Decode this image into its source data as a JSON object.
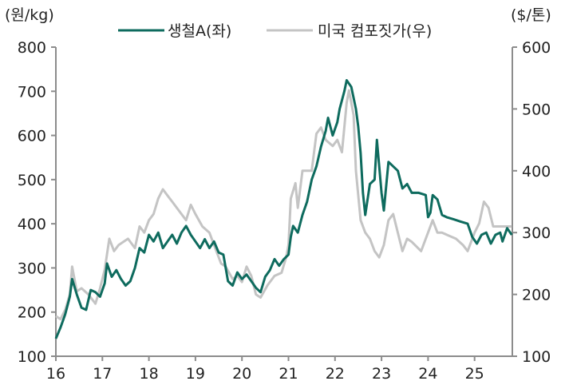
{
  "chart_data": {
    "type": "line",
    "title": "",
    "left_axis": {
      "unit_label": "(원/kg)",
      "ticks": [
        100,
        200,
        300,
        400,
        500,
        600,
        700,
        800
      ],
      "ylim": [
        100,
        800
      ]
    },
    "right_axis": {
      "unit_label": "($/톤)",
      "ticks": [
        100,
        200,
        300,
        400,
        500,
        600
      ],
      "ylim": [
        100,
        600
      ]
    },
    "x_axis": {
      "ticks": [
        "16",
        "17",
        "18",
        "19",
        "20",
        "21",
        "22",
        "23",
        "24",
        "25"
      ],
      "xlim": [
        16,
        25.8
      ]
    },
    "grid": false,
    "legend_position": "top",
    "colors": {
      "series_a": "#0e6b5e",
      "series_b": "#c4c4c4",
      "axis": "#8c8c8c"
    },
    "series": [
      {
        "name": "생철A(좌)",
        "axis": "left",
        "points": [
          [
            16.0,
            140
          ],
          [
            16.1,
            165
          ],
          [
            16.2,
            195
          ],
          [
            16.3,
            235
          ],
          [
            16.35,
            275
          ],
          [
            16.45,
            240
          ],
          [
            16.55,
            210
          ],
          [
            16.65,
            205
          ],
          [
            16.75,
            250
          ],
          [
            16.85,
            245
          ],
          [
            16.95,
            235
          ],
          [
            17.05,
            265
          ],
          [
            17.1,
            310
          ],
          [
            17.2,
            280
          ],
          [
            17.3,
            295
          ],
          [
            17.4,
            275
          ],
          [
            17.5,
            260
          ],
          [
            17.6,
            270
          ],
          [
            17.7,
            300
          ],
          [
            17.8,
            345
          ],
          [
            17.9,
            335
          ],
          [
            18.0,
            375
          ],
          [
            18.1,
            360
          ],
          [
            18.2,
            380
          ],
          [
            18.3,
            345
          ],
          [
            18.4,
            360
          ],
          [
            18.5,
            375
          ],
          [
            18.6,
            355
          ],
          [
            18.7,
            380
          ],
          [
            18.8,
            395
          ],
          [
            18.9,
            375
          ],
          [
            19.0,
            360
          ],
          [
            19.1,
            345
          ],
          [
            19.2,
            365
          ],
          [
            19.3,
            345
          ],
          [
            19.4,
            360
          ],
          [
            19.5,
            335
          ],
          [
            19.6,
            330
          ],
          [
            19.7,
            270
          ],
          [
            19.8,
            260
          ],
          [
            19.9,
            290
          ],
          [
            20.0,
            275
          ],
          [
            20.1,
            285
          ],
          [
            20.2,
            270
          ],
          [
            20.3,
            255
          ],
          [
            20.4,
            245
          ],
          [
            20.5,
            280
          ],
          [
            20.6,
            295
          ],
          [
            20.7,
            320
          ],
          [
            20.8,
            305
          ],
          [
            20.9,
            320
          ],
          [
            21.0,
            330
          ],
          [
            21.05,
            370
          ],
          [
            21.1,
            395
          ],
          [
            21.2,
            380
          ],
          [
            21.3,
            420
          ],
          [
            21.4,
            450
          ],
          [
            21.5,
            500
          ],
          [
            21.6,
            530
          ],
          [
            21.7,
            575
          ],
          [
            21.8,
            610
          ],
          [
            21.85,
            640
          ],
          [
            21.95,
            600
          ],
          [
            22.05,
            630
          ],
          [
            22.1,
            660
          ],
          [
            22.2,
            700
          ],
          [
            22.25,
            725
          ],
          [
            22.35,
            710
          ],
          [
            22.45,
            660
          ],
          [
            22.5,
            620
          ],
          [
            22.55,
            560
          ],
          [
            22.6,
            470
          ],
          [
            22.65,
            420
          ],
          [
            22.75,
            490
          ],
          [
            22.85,
            500
          ],
          [
            22.9,
            590
          ],
          [
            23.0,
            470
          ],
          [
            23.05,
            430
          ],
          [
            23.15,
            540
          ],
          [
            23.25,
            530
          ],
          [
            23.35,
            520
          ],
          [
            23.45,
            480
          ],
          [
            23.55,
            490
          ],
          [
            23.65,
            470
          ],
          [
            23.8,
            470
          ],
          [
            23.95,
            465
          ],
          [
            24.0,
            415
          ],
          [
            24.05,
            425
          ],
          [
            24.1,
            465
          ],
          [
            24.2,
            455
          ],
          [
            24.3,
            420
          ],
          [
            24.4,
            415
          ],
          [
            24.55,
            410
          ],
          [
            24.7,
            405
          ],
          [
            24.85,
            400
          ],
          [
            24.95,
            370
          ],
          [
            25.05,
            355
          ],
          [
            25.15,
            375
          ],
          [
            25.25,
            380
          ],
          [
            25.35,
            355
          ],
          [
            25.45,
            375
          ],
          [
            25.55,
            380
          ],
          [
            25.6,
            360
          ],
          [
            25.7,
            390
          ],
          [
            25.8,
            375
          ]
        ]
      },
      {
        "name": "미국 컴포짓가(우)",
        "axis": "right",
        "points": [
          [
            16.0,
            165
          ],
          [
            16.1,
            160
          ],
          [
            16.2,
            175
          ],
          [
            16.3,
            200
          ],
          [
            16.35,
            245
          ],
          [
            16.45,
            205
          ],
          [
            16.55,
            210
          ],
          [
            16.7,
            200
          ],
          [
            16.85,
            185
          ],
          [
            16.95,
            210
          ],
          [
            17.05,
            240
          ],
          [
            17.15,
            290
          ],
          [
            17.25,
            270
          ],
          [
            17.35,
            280
          ],
          [
            17.55,
            290
          ],
          [
            17.7,
            275
          ],
          [
            17.8,
            310
          ],
          [
            17.9,
            300
          ],
          [
            18.0,
            320
          ],
          [
            18.1,
            330
          ],
          [
            18.2,
            355
          ],
          [
            18.3,
            370
          ],
          [
            18.4,
            360
          ],
          [
            18.5,
            350
          ],
          [
            18.65,
            335
          ],
          [
            18.8,
            320
          ],
          [
            18.9,
            345
          ],
          [
            19.0,
            330
          ],
          [
            19.15,
            310
          ],
          [
            19.3,
            300
          ],
          [
            19.45,
            270
          ],
          [
            19.55,
            250
          ],
          [
            19.65,
            245
          ],
          [
            19.8,
            225
          ],
          [
            19.9,
            230
          ],
          [
            20.0,
            220
          ],
          [
            20.1,
            245
          ],
          [
            20.2,
            230
          ],
          [
            20.3,
            200
          ],
          [
            20.4,
            195
          ],
          [
            20.55,
            215
          ],
          [
            20.7,
            230
          ],
          [
            20.85,
            235
          ],
          [
            20.95,
            260
          ],
          [
            21.0,
            280
          ],
          [
            21.05,
            355
          ],
          [
            21.15,
            380
          ],
          [
            21.2,
            340
          ],
          [
            21.3,
            400
          ],
          [
            21.4,
            400
          ],
          [
            21.5,
            400
          ],
          [
            21.6,
            460
          ],
          [
            21.7,
            470
          ],
          [
            21.8,
            450
          ],
          [
            21.95,
            440
          ],
          [
            22.05,
            450
          ],
          [
            22.15,
            430
          ],
          [
            22.25,
            510
          ],
          [
            22.3,
            530
          ],
          [
            22.4,
            490
          ],
          [
            22.45,
            400
          ],
          [
            22.55,
            320
          ],
          [
            22.65,
            300
          ],
          [
            22.75,
            290
          ],
          [
            22.85,
            270
          ],
          [
            22.95,
            260
          ],
          [
            23.05,
            280
          ],
          [
            23.15,
            320
          ],
          [
            23.25,
            330
          ],
          [
            23.35,
            300
          ],
          [
            23.45,
            270
          ],
          [
            23.55,
            290
          ],
          [
            23.65,
            285
          ],
          [
            23.85,
            270
          ],
          [
            24.0,
            300
          ],
          [
            24.1,
            320
          ],
          [
            24.2,
            300
          ],
          [
            24.3,
            300
          ],
          [
            24.45,
            295
          ],
          [
            24.6,
            290
          ],
          [
            24.75,
            280
          ],
          [
            24.85,
            270
          ],
          [
            25.0,
            300
          ],
          [
            25.1,
            315
          ],
          [
            25.2,
            350
          ],
          [
            25.3,
            340
          ],
          [
            25.4,
            310
          ],
          [
            25.5,
            310
          ],
          [
            25.8,
            310
          ]
        ]
      }
    ]
  },
  "legend": {
    "items": [
      {
        "label": "생철A(좌)",
        "color": "#0e6b5e"
      },
      {
        "label": "미국 컴포짓가(우)",
        "color": "#c4c4c4"
      }
    ]
  },
  "axes": {
    "left_unit": "(원/kg)",
    "right_unit": "($/톤)",
    "left_ticks": [
      "800",
      "700",
      "600",
      "500",
      "400",
      "300",
      "200",
      "100"
    ],
    "right_ticks": [
      "600",
      "500",
      "400",
      "300",
      "200",
      "100"
    ],
    "x_ticks": [
      "16",
      "17",
      "18",
      "19",
      "20",
      "21",
      "22",
      "23",
      "24",
      "25"
    ]
  }
}
